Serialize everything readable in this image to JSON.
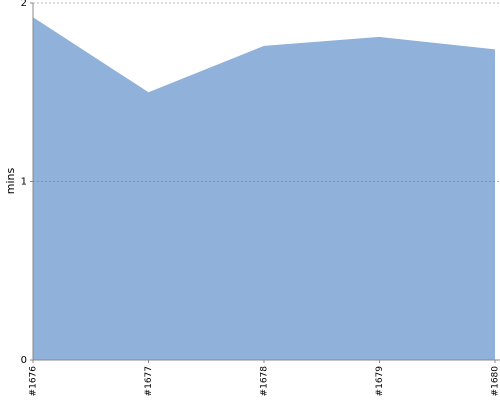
{
  "chart_data": {
    "type": "area",
    "y_label": "mins",
    "categories": [
      "#1676",
      "#1677",
      "#1678",
      "#1679",
      "#1680"
    ],
    "values": [
      1.92,
      1.5,
      1.76,
      1.81,
      1.74
    ],
    "color": "#8fb1da",
    "ylim": [
      0,
      2
    ],
    "yticks": [
      0,
      1,
      2
    ],
    "grid": true
  }
}
